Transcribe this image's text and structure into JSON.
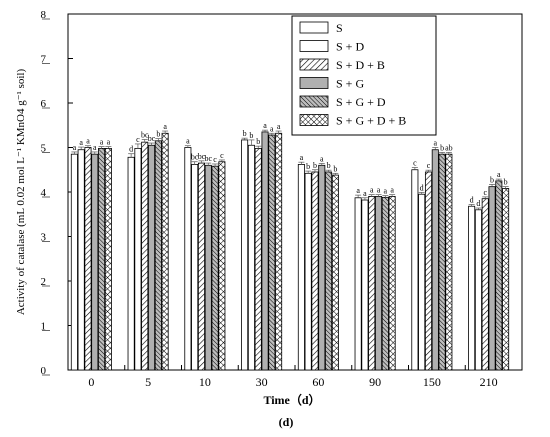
{
  "panel_label": "(d)",
  "chart_data": {
    "type": "bar",
    "xlabel": "Time（d）",
    "ylabel": "Activity of catalase (mL 0.02 mol L⁻¹ KMnO4 g⁻¹ soil)",
    "ylim": [
      0,
      8
    ],
    "yticks": [
      0,
      1,
      2,
      3,
      4,
      5,
      6,
      7,
      8
    ],
    "categories": [
      "0",
      "5",
      "10",
      "30",
      "60",
      "90",
      "150",
      "210"
    ],
    "legend_position": "top-right",
    "series": [
      {
        "name": "S",
        "pattern": "white",
        "values": [
          4.85,
          4.78,
          5.0,
          5.17,
          4.62,
          3.87,
          4.5,
          3.68
        ],
        "errors": [
          0.05,
          0.08,
          0.04,
          0.04,
          0.05,
          0.06,
          0.05,
          0.04
        ],
        "letters": [
          "a",
          "d",
          "a",
          "b",
          "a",
          "a",
          "c",
          "d"
        ]
      },
      {
        "name": "S + D",
        "pattern": "light",
        "values": [
          4.95,
          4.98,
          4.62,
          5.05,
          4.42,
          3.82,
          3.95,
          3.6
        ],
        "errors": [
          0.06,
          0.1,
          0.06,
          0.12,
          0.05,
          0.05,
          0.04,
          0.04
        ],
        "letters": [
          "a",
          "c",
          "bc",
          "b",
          "b",
          "a",
          "d",
          "d"
        ]
      },
      {
        "name": "S + D + B",
        "pattern": "diag-right",
        "values": [
          5.0,
          5.12,
          4.65,
          4.98,
          4.45,
          3.9,
          4.45,
          3.85
        ],
        "errors": [
          0.04,
          0.06,
          0.05,
          0.05,
          0.05,
          0.04,
          0.04,
          0.04
        ],
        "letters": [
          "a",
          "bc",
          "bc",
          "b",
          "b",
          "a",
          "c",
          "c"
        ]
      },
      {
        "name": "S + G",
        "pattern": "gray",
        "values": [
          4.85,
          5.05,
          4.6,
          5.35,
          4.6,
          3.9,
          4.95,
          4.12
        ],
        "errors": [
          0.05,
          0.05,
          0.05,
          0.04,
          0.04,
          0.04,
          0.05,
          0.05
        ],
        "letters": [
          "a",
          "bc",
          "bc",
          "a",
          "a",
          "a",
          "a",
          "b"
        ]
      },
      {
        "name": "S + G + D",
        "pattern": "diag-left",
        "values": [
          4.98,
          5.15,
          4.58,
          5.28,
          4.45,
          3.88,
          4.85,
          4.25
        ],
        "errors": [
          0.04,
          0.05,
          0.05,
          0.04,
          0.04,
          0.04,
          0.04,
          0.04
        ],
        "letters": [
          "a",
          "b",
          "c",
          "a",
          "b",
          "a",
          "b",
          "a"
        ]
      },
      {
        "name": "S + G + D + B",
        "pattern": "cross",
        "values": [
          4.98,
          5.32,
          4.68,
          5.32,
          4.38,
          3.9,
          4.85,
          4.08
        ],
        "errors": [
          0.04,
          0.05,
          0.04,
          0.05,
          0.04,
          0.04,
          0.04,
          0.04
        ],
        "letters": [
          "a",
          "a",
          "c",
          "a",
          "b",
          "a",
          "ab",
          "b"
        ]
      }
    ]
  }
}
